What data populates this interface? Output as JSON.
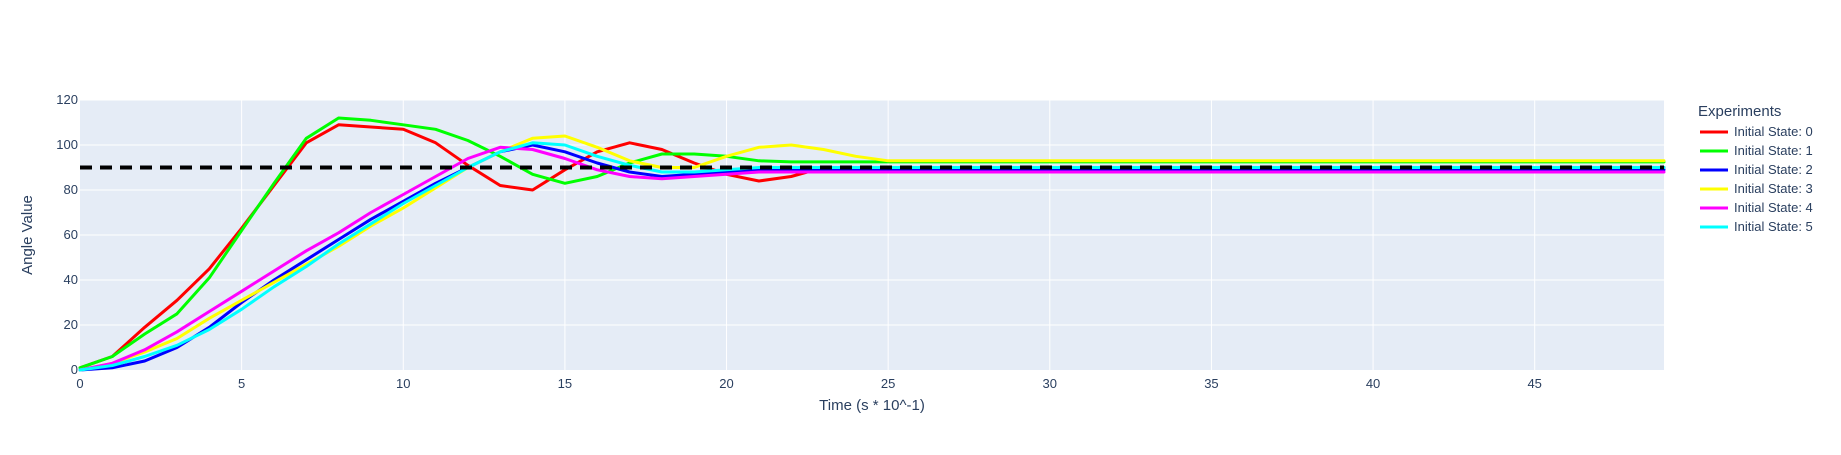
{
  "chart_data": {
    "type": "line",
    "title": "",
    "xlabel": "Time (s * 10^-1)",
    "ylabel": "Angle Value",
    "xlim": [
      0,
      49
    ],
    "ylim": [
      0,
      120
    ],
    "xticks": [
      0,
      5,
      10,
      15,
      20,
      25,
      30,
      35,
      40,
      45
    ],
    "yticks": [
      0,
      20,
      40,
      60,
      80,
      100,
      120
    ],
    "grid": true,
    "legend": {
      "title": "Experiments",
      "placement": "right"
    },
    "x": [
      0,
      1,
      2,
      3,
      4,
      5,
      6,
      7,
      8,
      9,
      10,
      11,
      12,
      13,
      14,
      15,
      16,
      17,
      18,
      19,
      20,
      21,
      22,
      23,
      24,
      25,
      26,
      27,
      28,
      29,
      30,
      31,
      32,
      33,
      34,
      35,
      36,
      37,
      38,
      39,
      40,
      41,
      42,
      43,
      44,
      45,
      46,
      47,
      48,
      49
    ],
    "target": {
      "value": 90,
      "style": "dashed",
      "color": "#000000"
    },
    "series": [
      {
        "name": "Initial State: 0",
        "color": "#ff0000",
        "values": [
          1,
          6,
          19,
          31,
          45,
          63,
          82,
          101,
          109,
          108,
          107,
          101,
          91,
          82,
          80,
          89,
          97,
          101,
          98,
          92,
          87,
          84,
          86,
          90,
          90,
          90,
          90,
          90,
          90,
          90,
          90,
          90,
          90,
          90,
          90,
          90,
          90,
          90,
          90,
          90,
          90,
          90,
          90,
          90,
          90,
          90,
          90,
          90,
          90,
          90
        ]
      },
      {
        "name": "Initial State: 1",
        "color": "#00ff00",
        "values": [
          1,
          6,
          16,
          25,
          41,
          62,
          83,
          103,
          112,
          111,
          109,
          107,
          102,
          95,
          87,
          83,
          86,
          92,
          96,
          96,
          95,
          93,
          92.5,
          92.5,
          92.5,
          92.5,
          92.5,
          92.5,
          92.5,
          92.5,
          92.5,
          92.5,
          92.5,
          92.5,
          92.5,
          92.5,
          92.5,
          92.5,
          92.5,
          92.5,
          92.5,
          92.5,
          92.5,
          92.5,
          92.5,
          92.5,
          92.5,
          92.5,
          92.5,
          92.5
        ]
      },
      {
        "name": "Initial State: 2",
        "color": "#0000ff",
        "values": [
          0,
          1,
          4,
          10,
          19,
          30,
          40,
          49,
          58,
          67,
          75,
          83,
          90,
          97,
          100,
          97,
          92,
          88,
          86,
          87,
          88,
          89,
          89,
          89,
          89,
          89,
          89,
          89,
          89,
          89,
          89,
          89,
          89,
          89,
          89,
          89,
          89,
          89,
          89,
          89,
          89,
          89,
          89,
          89,
          89,
          89,
          89,
          89,
          89,
          89
        ]
      },
      {
        "name": "Initial State: 3",
        "color": "#ffff00",
        "values": [
          0,
          3,
          8,
          14,
          23,
          31,
          39,
          47,
          55,
          64,
          72,
          81,
          90,
          97,
          103,
          104,
          99,
          93,
          90,
          90,
          95,
          99,
          100,
          98,
          95,
          93,
          93,
          93,
          93,
          93,
          93,
          93,
          93,
          93,
          93,
          93,
          93,
          93,
          93,
          93,
          93,
          93,
          93,
          93,
          93,
          93,
          93,
          93,
          93,
          93
        ]
      },
      {
        "name": "Initial State: 4",
        "color": "#ff00ff",
        "values": [
          0,
          3,
          9,
          17,
          26,
          35,
          44,
          53,
          61,
          70,
          78,
          86,
          94,
          99,
          98,
          94,
          89,
          86,
          85,
          86,
          87,
          88,
          88,
          88,
          88,
          88,
          88,
          88,
          88,
          88,
          88,
          88,
          88,
          88,
          88,
          88,
          88,
          88,
          88,
          88,
          88,
          88,
          88,
          88,
          88,
          88,
          88,
          88,
          88,
          88
        ]
      },
      {
        "name": "Initial State: 5",
        "color": "#00ffff",
        "values": [
          0,
          2,
          6,
          11,
          18,
          27,
          37,
          46,
          56,
          65,
          74,
          82,
          90,
          97,
          101,
          100,
          95,
          91,
          88,
          88,
          89,
          90,
          90,
          90,
          90,
          90,
          90,
          90,
          90,
          90,
          90,
          90,
          90,
          90,
          90,
          90,
          90,
          90,
          90,
          90,
          90,
          90,
          90,
          90,
          90,
          90,
          90,
          90,
          90,
          90
        ]
      }
    ]
  }
}
